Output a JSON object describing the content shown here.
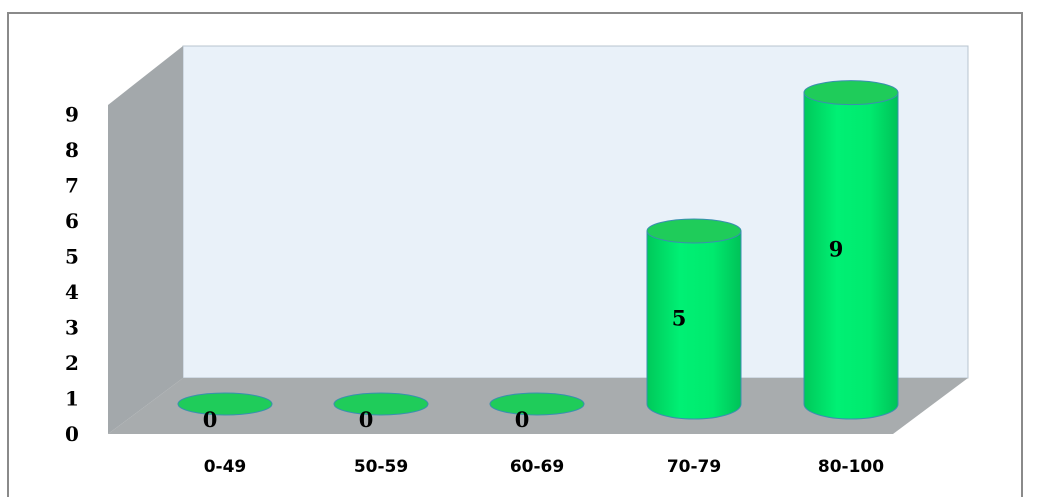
{
  "chart_data": {
    "type": "bar",
    "categories": [
      "0-49",
      "50-59",
      "60-69",
      "70-79",
      "80-100"
    ],
    "values": [
      0,
      0,
      0,
      5,
      9
    ],
    "data_labels": [
      "0",
      "0",
      "0",
      "5",
      "9"
    ],
    "y_ticks": [
      "0",
      "1",
      "2",
      "3",
      "4",
      "5",
      "6",
      "7",
      "8",
      "9"
    ],
    "title": "",
    "xlabel": "",
    "ylabel": "",
    "ylim": [
      0,
      9
    ],
    "grid": false,
    "legend": "none",
    "style": "3d-cylinder",
    "colors": {
      "bar_fill": "#00e86a",
      "bar_top": "#1fcc5a",
      "bar_edge": "#3a8fb0",
      "back_wall": "#e9f1f9",
      "side_wall": "#a3a8ab",
      "floor": "#a8acae",
      "frame": "#8a8a8a"
    }
  }
}
